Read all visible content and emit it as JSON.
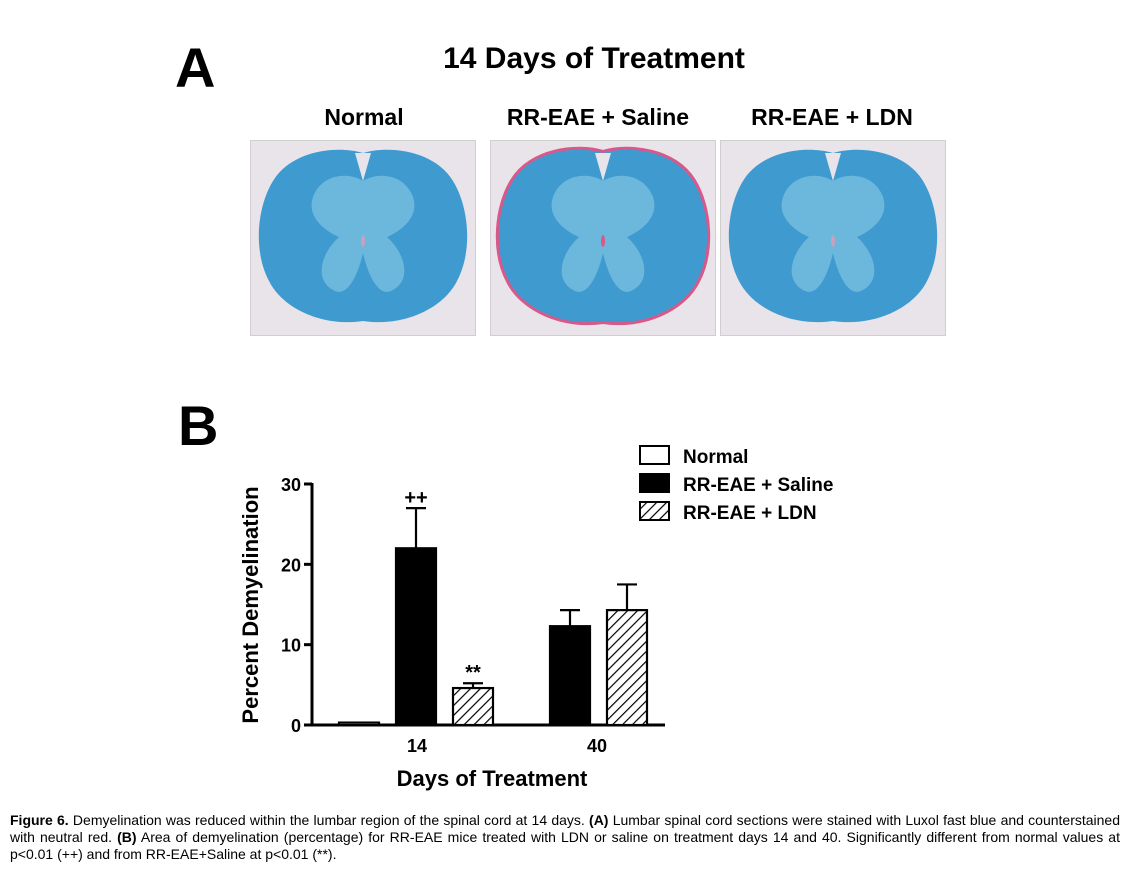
{
  "panel_a": {
    "letter": "A",
    "title": "14 Days of Treatment",
    "images": [
      {
        "label": "Normal",
        "stain": "blue"
      },
      {
        "label": "RR-EAE + Saline",
        "stain": "blue-with-red-rim"
      },
      {
        "label": "RR-EAE + LDN",
        "stain": "blue"
      }
    ]
  },
  "panel_b": {
    "letter": "B"
  },
  "chart_data": {
    "type": "bar",
    "categories": [
      "14",
      "40"
    ],
    "xlabel": "Days of Treatment",
    "ylabel": "Percent Demyelination",
    "ylim": [
      0,
      30
    ],
    "yticks": [
      0,
      10,
      20,
      30
    ],
    "grid": false,
    "legend_position": "top-right",
    "series": [
      {
        "name": "Normal",
        "values": [
          0.3,
          null
        ],
        "errors": [
          0,
          null
        ],
        "fill": "white"
      },
      {
        "name": "RR-EAE + Saline",
        "values": [
          22,
          12.3
        ],
        "errors": [
          5,
          2
        ],
        "fill": "black"
      },
      {
        "name": "RR-EAE + LDN",
        "values": [
          4.6,
          14.3
        ],
        "errors": [
          0.6,
          3.2
        ],
        "fill": "hatched"
      }
    ],
    "annotations": [
      {
        "text": "++",
        "category": "14",
        "series": "RR-EAE + Saline"
      },
      {
        "text": "**",
        "category": "14",
        "series": "RR-EAE + LDN"
      }
    ]
  },
  "caption": {
    "label": "Figure 6.",
    "text1": " Demyelination was reduced within the lumbar region of the spinal cord at 14 days. ",
    "a_label": "(A)",
    "text2": " Lumbar spinal cord sections were stained with Luxol fast blue and counterstained with neutral red. ",
    "b_label": "(B)",
    "text3": " Area of demyelination (percentage) for RR-EAE mice treated with LDN or saline on treatment days 14 and 40. Significantly different from normal values at p<0.01 (++) and from RR-EAE+Saline at p<0.01 (**)."
  },
  "colors": {
    "stain_blue": "#3f9ad0",
    "stain_white_matter": "#7cc0e0",
    "stain_red": "#d9588a",
    "slide_background": "#e8e4ea"
  }
}
